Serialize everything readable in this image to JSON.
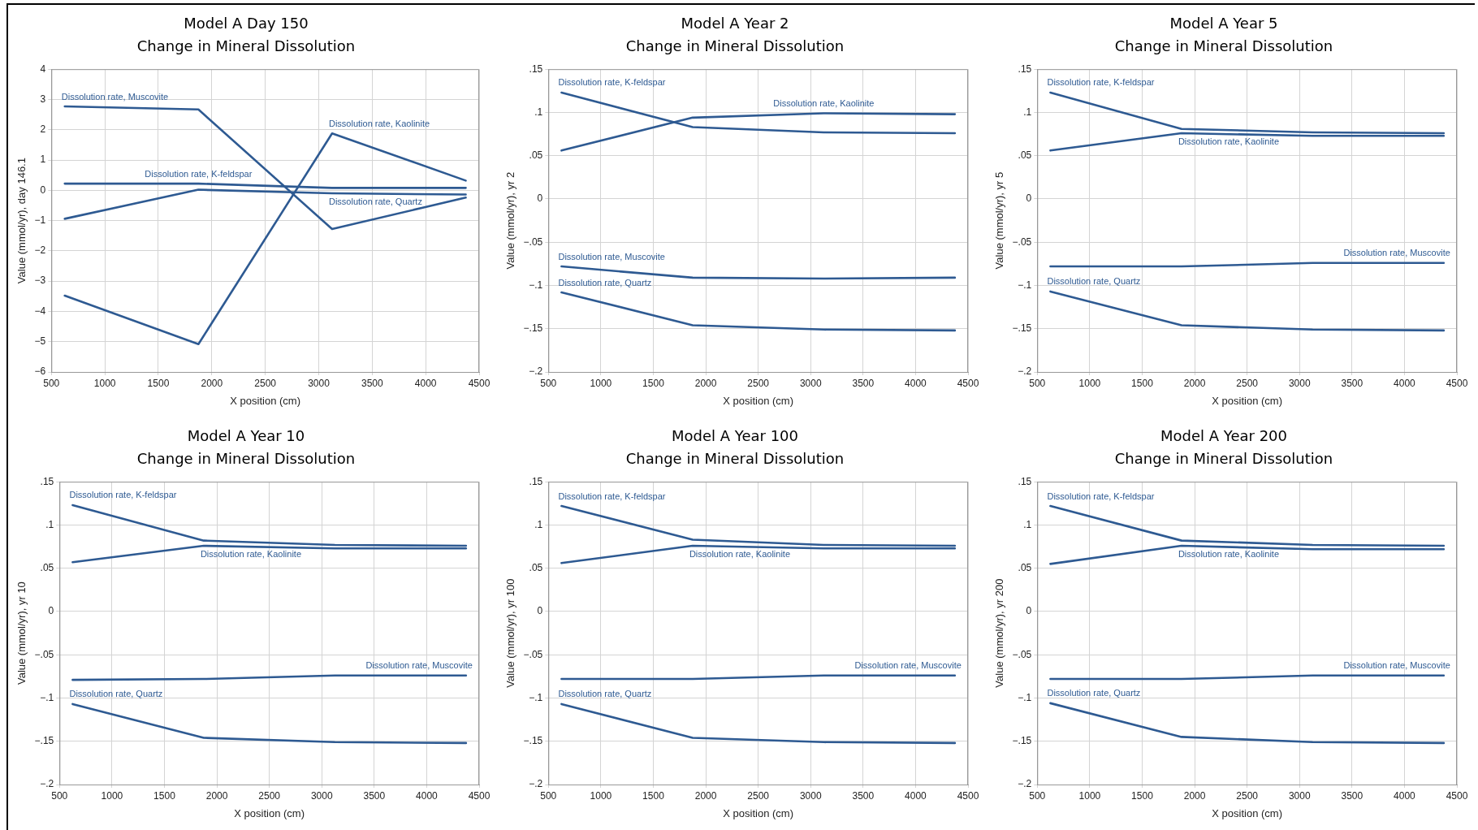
{
  "chart_data": [
    {
      "type": "line",
      "title": "Model A Day 150",
      "subtitle": "Change in Mineral Dissolution",
      "xlabel": "X position (cm)",
      "ylabel": "Value (mmol/yr), day 146.1",
      "x": [
        625,
        1875,
        3125,
        4375
      ],
      "xlim": [
        500,
        4500
      ],
      "xticks": [
        500,
        1000,
        1500,
        2000,
        2500,
        3000,
        3500,
        4000,
        4500
      ],
      "ylim": [
        -6,
        4
      ],
      "yticks": [
        4,
        3,
        2,
        1,
        0,
        {
          "value": -1,
          "label": "−1"
        },
        {
          "value": -2,
          "label": "−2"
        },
        {
          "value": -3,
          "label": "−3"
        },
        {
          "value": -4,
          "label": "−4"
        },
        {
          "value": -5,
          "label": "−5"
        },
        {
          "value": -6,
          "label": "−6"
        }
      ],
      "grid": true,
      "legend": false,
      "marker": "none",
      "line_style": "solid",
      "series": [
        {
          "name": "Dissolution rate, K-feldspar",
          "color": "#2e5a92",
          "values": [
            0.22,
            0.22,
            0.08,
            0.08
          ]
        },
        {
          "name": "Dissolution rate, Kaolinite",
          "color": "#2e5a92",
          "values": [
            -3.48,
            -5.08,
            1.88,
            0.32
          ]
        },
        {
          "name": "Dissolution rate, Muscovite",
          "color": "#2e5a92",
          "values": [
            2.77,
            2.67,
            -1.28,
            -0.24
          ]
        },
        {
          "name": "Dissolution rate, Quartz",
          "color": "#2e5a92",
          "values": [
            -0.94,
            0.02,
            -0.1,
            -0.14
          ]
        }
      ]
    },
    {
      "type": "line",
      "title": "Model A Year 2",
      "subtitle": "Change in Mineral Dissolution",
      "xlabel": "X position (cm)",
      "ylabel": "Value (mmol/yr), yr 2",
      "x": [
        625,
        1875,
        3125,
        4375
      ],
      "xlim": [
        500,
        4500
      ],
      "xticks": [
        500,
        1000,
        1500,
        2000,
        2500,
        3000,
        3500,
        4000,
        4500
      ],
      "ylim": [
        -0.2,
        0.15
      ],
      "yticks": [
        {
          "value": 0.15,
          "label": ".15"
        },
        {
          "value": 0.1,
          "label": ".1"
        },
        {
          "value": 0.05,
          "label": ".05"
        },
        0,
        {
          "value": -0.05,
          "label": "−.05"
        },
        {
          "value": -0.1,
          "label": "−.1"
        },
        {
          "value": -0.15,
          "label": "−.15"
        },
        {
          "value": -0.2,
          "label": "−.2"
        }
      ],
      "grid": true,
      "legend": false,
      "marker": "none",
      "line_style": "solid",
      "series": [
        {
          "name": "Dissolution rate, K-feldspar",
          "color": "#2e5a92",
          "values": [
            0.123,
            0.083,
            0.077,
            0.076
          ]
        },
        {
          "name": "Dissolution rate, Kaolinite",
          "color": "#2e5a92",
          "values": [
            0.056,
            0.094,
            0.099,
            0.098
          ]
        },
        {
          "name": "Dissolution rate, Muscovite",
          "color": "#2e5a92",
          "values": [
            -0.078,
            -0.091,
            -0.092,
            -0.091
          ]
        },
        {
          "name": "Dissolution rate, Quartz",
          "color": "#2e5a92",
          "values": [
            -0.108,
            -0.146,
            -0.151,
            -0.152
          ]
        }
      ]
    },
    {
      "type": "line",
      "title": "Model A Year 5",
      "subtitle": "Change in Mineral Dissolution",
      "xlabel": "X position (cm)",
      "ylabel": "Value (mmol/yr), yr 5",
      "x": [
        625,
        1875,
        3125,
        4375
      ],
      "xlim": [
        500,
        4500
      ],
      "xticks": [
        500,
        1000,
        1500,
        2000,
        2500,
        3000,
        3500,
        4000,
        4500
      ],
      "ylim": [
        -0.2,
        0.15
      ],
      "yticks": [
        {
          "value": 0.15,
          "label": ".15"
        },
        {
          "value": 0.1,
          "label": ".1"
        },
        {
          "value": 0.05,
          "label": ".05"
        },
        0,
        {
          "value": -0.05,
          "label": "−.05"
        },
        {
          "value": -0.1,
          "label": "−.1"
        },
        {
          "value": -0.15,
          "label": "−.15"
        },
        {
          "value": -0.2,
          "label": "−.2"
        }
      ],
      "grid": true,
      "legend": false,
      "marker": "none",
      "line_style": "solid",
      "series": [
        {
          "name": "Dissolution rate, K-feldspar",
          "color": "#2e5a92",
          "values": [
            0.123,
            0.081,
            0.077,
            0.076
          ]
        },
        {
          "name": "Dissolution rate, Kaolinite",
          "color": "#2e5a92",
          "values": [
            0.056,
            0.076,
            0.073,
            0.073
          ]
        },
        {
          "name": "Dissolution rate, Muscovite",
          "color": "#2e5a92",
          "values": [
            -0.078,
            -0.078,
            -0.074,
            -0.074
          ]
        },
        {
          "name": "Dissolution rate, Quartz",
          "color": "#2e5a92",
          "values": [
            -0.107,
            -0.146,
            -0.151,
            -0.152
          ]
        }
      ]
    },
    {
      "type": "line",
      "title": "Model A Year 10",
      "subtitle": "Change in Mineral Dissolution",
      "xlabel": "X position (cm)",
      "ylabel": "Value (mmol/yr), yr 10",
      "x": [
        625,
        1875,
        3125,
        4375
      ],
      "xlim": [
        500,
        4500
      ],
      "xticks": [
        500,
        1000,
        1500,
        2000,
        2500,
        3000,
        3500,
        4000,
        4500
      ],
      "ylim": [
        -0.2,
        0.15
      ],
      "yticks": [
        {
          "value": 0.15,
          "label": ".15"
        },
        {
          "value": 0.1,
          "label": ".1"
        },
        {
          "value": 0.05,
          "label": ".05"
        },
        0,
        {
          "value": -0.05,
          "label": "−.05"
        },
        {
          "value": -0.1,
          "label": "−.1"
        },
        {
          "value": -0.15,
          "label": "−.15"
        },
        {
          "value": -0.2,
          "label": "−.2"
        }
      ],
      "grid": true,
      "legend": false,
      "marker": "none",
      "line_style": "solid",
      "series": [
        {
          "name": "Dissolution rate, K-feldspar",
          "color": "#2e5a92",
          "values": [
            0.123,
            0.082,
            0.077,
            0.076
          ]
        },
        {
          "name": "Dissolution rate, Kaolinite",
          "color": "#2e5a92",
          "values": [
            0.057,
            0.076,
            0.073,
            0.073
          ]
        },
        {
          "name": "Dissolution rate, Muscovite",
          "color": "#2e5a92",
          "values": [
            -0.079,
            -0.078,
            -0.074,
            -0.074
          ]
        },
        {
          "name": "Dissolution rate, Quartz",
          "color": "#2e5a92",
          "values": [
            -0.107,
            -0.146,
            -0.151,
            -0.152
          ]
        }
      ]
    },
    {
      "type": "line",
      "title": "Model A Year 100",
      "subtitle": "Change in Mineral Dissolution",
      "xlabel": "X position (cm)",
      "ylabel": "Value (mmol/yr), yr 100",
      "x": [
        625,
        1875,
        3125,
        4375
      ],
      "xlim": [
        500,
        4500
      ],
      "xticks": [
        500,
        1000,
        1500,
        2000,
        2500,
        3000,
        3500,
        4000,
        4500
      ],
      "ylim": [
        -0.2,
        0.15
      ],
      "yticks": [
        {
          "value": 0.15,
          "label": ".15"
        },
        {
          "value": 0.1,
          "label": ".1"
        },
        {
          "value": 0.05,
          "label": ".05"
        },
        0,
        {
          "value": -0.05,
          "label": "−.05"
        },
        {
          "value": -0.1,
          "label": "−.1"
        },
        {
          "value": -0.15,
          "label": "−.15"
        },
        {
          "value": -0.2,
          "label": "−.2"
        }
      ],
      "grid": true,
      "legend": false,
      "marker": "none",
      "line_style": "solid",
      "series": [
        {
          "name": "Dissolution rate, K-feldspar",
          "color": "#2e5a92",
          "values": [
            0.122,
            0.083,
            0.077,
            0.076
          ]
        },
        {
          "name": "Dissolution rate, Kaolinite",
          "color": "#2e5a92",
          "values": [
            0.056,
            0.076,
            0.073,
            0.073
          ]
        },
        {
          "name": "Dissolution rate, Muscovite",
          "color": "#2e5a92",
          "values": [
            -0.078,
            -0.078,
            -0.074,
            -0.074
          ]
        },
        {
          "name": "Dissolution rate, Quartz",
          "color": "#2e5a92",
          "values": [
            -0.107,
            -0.146,
            -0.151,
            -0.152
          ]
        }
      ]
    },
    {
      "type": "line",
      "title": "Model A Year 200",
      "subtitle": "Change in Mineral Dissolution",
      "xlabel": "X position (cm)",
      "ylabel": "Value (mmol/yr), yr 200",
      "x": [
        625,
        1875,
        3125,
        4375
      ],
      "xlim": [
        500,
        4500
      ],
      "xticks": [
        500,
        1000,
        1500,
        2000,
        2500,
        3000,
        3500,
        4000,
        4500
      ],
      "ylim": [
        -0.2,
        0.15
      ],
      "yticks": [
        {
          "value": 0.15,
          "label": ".15"
        },
        {
          "value": 0.1,
          "label": ".1"
        },
        {
          "value": 0.05,
          "label": ".05"
        },
        0,
        {
          "value": -0.05,
          "label": "−.05"
        },
        {
          "value": -0.1,
          "label": "−.1"
        },
        {
          "value": -0.15,
          "label": "−.15"
        },
        {
          "value": -0.2,
          "label": "−.2"
        }
      ],
      "grid": true,
      "legend": false,
      "marker": "none",
      "line_style": "solid",
      "series": [
        {
          "name": "Dissolution rate, K-feldspar",
          "color": "#2e5a92",
          "values": [
            0.122,
            0.082,
            0.077,
            0.076
          ]
        },
        {
          "name": "Dissolution rate, Kaolinite",
          "color": "#2e5a92",
          "values": [
            0.055,
            0.076,
            0.072,
            0.072
          ]
        },
        {
          "name": "Dissolution rate, Muscovite",
          "color": "#2e5a92",
          "values": [
            -0.078,
            -0.078,
            -0.074,
            -0.074
          ]
        },
        {
          "name": "Dissolution rate, Quartz",
          "color": "#2e5a92",
          "values": [
            -0.106,
            -0.145,
            -0.151,
            -0.152
          ]
        }
      ]
    }
  ]
}
